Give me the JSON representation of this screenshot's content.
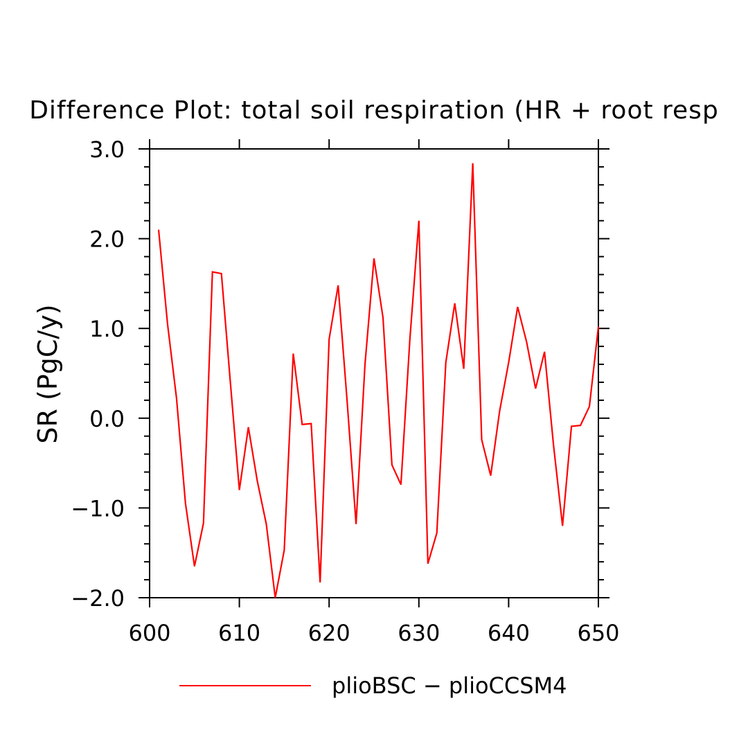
{
  "chart_data": {
    "type": "line",
    "title": "Difference Plot: total soil respiration (HR + root resp",
    "xlabel": "",
    "ylabel": "SR  (PgC/y)",
    "xlim": [
      600,
      650
    ],
    "ylim": [
      -2.0,
      3.0
    ],
    "x_ticks": [
      600,
      610,
      620,
      630,
      640,
      650
    ],
    "x_tick_labels": [
      "600",
      "610",
      "620",
      "630",
      "640",
      "650"
    ],
    "y_ticks": [
      -2.0,
      -1.0,
      0.0,
      1.0,
      2.0,
      3.0
    ],
    "y_tick_labels": [
      "−2.0",
      "−1.0",
      "0.0",
      "1.0",
      "2.0",
      "3.0"
    ],
    "grid": false,
    "legend_position": "bottom",
    "series": [
      {
        "name": "plioBSC − plioCCSM4",
        "color": "#ff0000",
        "x": [
          601,
          602,
          603,
          604,
          605,
          606,
          607,
          608,
          609,
          610,
          611,
          612,
          613,
          614,
          615,
          616,
          617,
          618,
          619,
          620,
          621,
          622,
          623,
          624,
          625,
          626,
          627,
          628,
          629,
          630,
          631,
          632,
          633,
          634,
          635,
          636,
          637,
          638,
          639,
          640,
          641,
          642,
          643,
          644,
          645,
          646,
          647,
          648,
          649,
          650
        ],
        "values": [
          2.1,
          1.05,
          0.22,
          -0.95,
          -1.65,
          -1.17,
          1.63,
          1.61,
          0.4,
          -0.8,
          -0.1,
          -0.7,
          -1.18,
          -2.0,
          -1.47,
          0.72,
          -0.07,
          -0.06,
          -1.83,
          0.88,
          1.48,
          0.2,
          -1.18,
          0.6,
          1.78,
          1.12,
          -0.52,
          -0.74,
          0.88,
          2.2,
          -1.62,
          -1.28,
          0.62,
          1.28,
          0.55,
          2.84,
          -0.24,
          -0.64,
          0.08,
          0.62,
          1.24,
          0.85,
          0.33,
          0.74,
          -0.3,
          -1.2,
          -0.09,
          -0.08,
          0.13,
          1.02
        ]
      }
    ]
  }
}
